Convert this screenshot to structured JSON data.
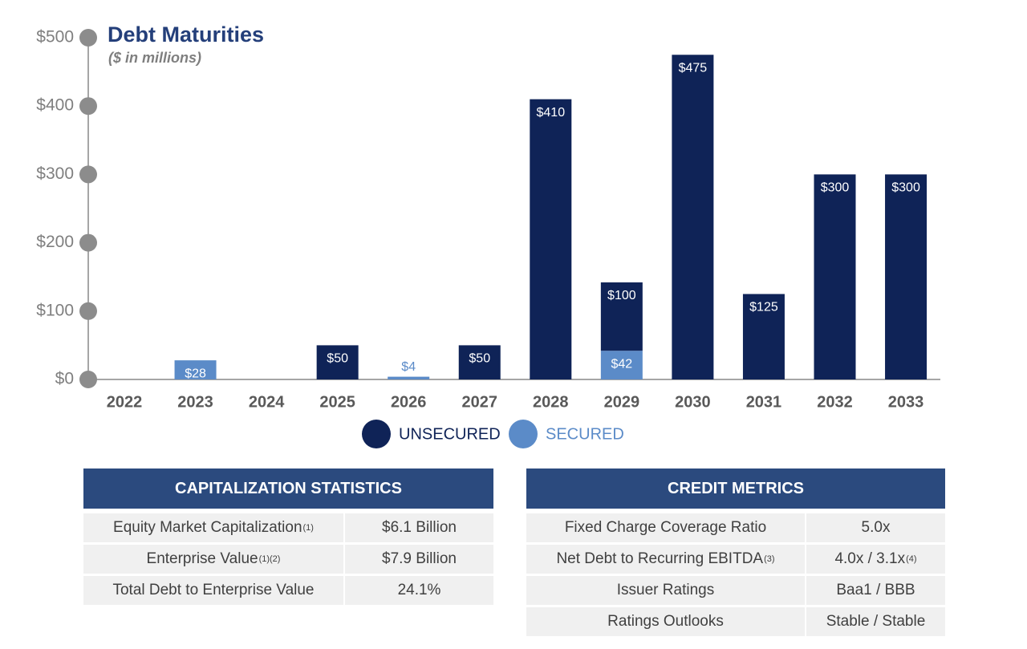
{
  "chart_data": {
    "type": "bar",
    "stacked": true,
    "title": "Debt Maturities",
    "subtitle": "($ in millions)",
    "categories": [
      "2022",
      "2023",
      "2024",
      "2025",
      "2026",
      "2027",
      "2028",
      "2029",
      "2030",
      "2031",
      "2032",
      "2033"
    ],
    "series": [
      {
        "name": "UNSECURED",
        "color": "#0f2357",
        "values": [
          null,
          null,
          null,
          50,
          null,
          50,
          410,
          100,
          475,
          125,
          300,
          300
        ],
        "value_labels": [
          null,
          null,
          null,
          "$50",
          null,
          "$50",
          "$410",
          "$100",
          "$475",
          "$125",
          "$300",
          "$300"
        ]
      },
      {
        "name": "SECURED",
        "color": "#5b8bc8",
        "values": [
          null,
          28,
          null,
          null,
          4,
          null,
          null,
          42,
          null,
          null,
          null,
          null
        ],
        "value_labels": [
          null,
          "$28",
          null,
          null,
          "$4",
          null,
          null,
          "$42",
          null,
          null,
          null,
          null
        ]
      }
    ],
    "ylim": [
      0,
      500
    ],
    "yticks": [
      {
        "value": 0,
        "label": "$0"
      },
      {
        "value": 100,
        "label": "$100"
      },
      {
        "value": 200,
        "label": "$200"
      },
      {
        "value": 300,
        "label": "$300"
      },
      {
        "value": 400,
        "label": "$400"
      },
      {
        "value": 500,
        "label": "$500"
      }
    ],
    "grid": false
  },
  "tables": [
    {
      "title": "CAPITALIZATION STATISTICS",
      "rows": [
        {
          "label": "Equity Market Capitalization",
          "label_note": "(1)",
          "value": "$6.1 Billion"
        },
        {
          "label": "Enterprise Value",
          "label_note": "(1)(2)",
          "value": "$7.9 Billion"
        },
        {
          "label": "Total Debt to Enterprise Value",
          "value": "24.1%"
        }
      ]
    },
    {
      "title": "CREDIT METRICS",
      "rows": [
        {
          "label": "Fixed Charge Coverage Ratio",
          "value": "5.0x"
        },
        {
          "label": "Net Debt to Recurring EBITDA",
          "label_note": "(3)",
          "value": "4.0x / 3.1x",
          "value_note": "(4)"
        },
        {
          "label": "Issuer Ratings",
          "value": "Baa1 / BBB"
        },
        {
          "label": "Ratings Outlooks",
          "value": "Stable / Stable"
        }
      ]
    }
  ]
}
